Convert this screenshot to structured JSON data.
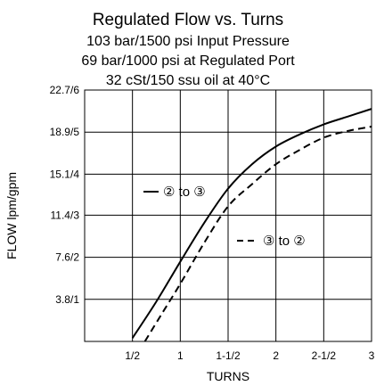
{
  "chart_data": {
    "type": "line",
    "title_lines": [
      "Regulated Flow vs. Turns",
      "103 bar/1500 psi Input Pressure",
      "69 bar/1000 psi at Regulated Port",
      "32 cSt/150 ssu oil at 40°C"
    ],
    "xlabel": "TURNS",
    "ylabel": "FLOW lpm/gpm",
    "xlim": [
      0,
      3
    ],
    "ylim": [
      0,
      22.7
    ],
    "x_ticks": [
      {
        "value": 0.5,
        "label": "1/2"
      },
      {
        "value": 1,
        "label": "1"
      },
      {
        "value": 1.5,
        "label": "1-1/2"
      },
      {
        "value": 2,
        "label": "2"
      },
      {
        "value": 2.5,
        "label": "2-1/2"
      },
      {
        "value": 3,
        "label": "3"
      }
    ],
    "y_ticks": [
      {
        "value": 3.8,
        "label": "3.8/1"
      },
      {
        "value": 7.6,
        "label": "7.6/2"
      },
      {
        "value": 11.4,
        "label": "11.4/3"
      },
      {
        "value": 15.1,
        "label": "15.1/4"
      },
      {
        "value": 18.9,
        "label": "18.9/5"
      },
      {
        "value": 22.7,
        "label": "22.7/6"
      }
    ],
    "grid": true,
    "series": [
      {
        "name": "② to ③",
        "style": "solid",
        "x": [
          0.5,
          0.75,
          1.0,
          1.25,
          1.5,
          1.75,
          2.0,
          2.25,
          2.5,
          2.75,
          3.0
        ],
        "y": [
          0.3,
          3.6,
          7.2,
          10.7,
          13.8,
          16.0,
          17.6,
          18.7,
          19.6,
          20.3,
          21.0
        ]
      },
      {
        "name": "③ to ②",
        "style": "dashed",
        "x": [
          0.63,
          0.8,
          1.0,
          1.25,
          1.5,
          1.75,
          2.0,
          2.25,
          2.5,
          2.75,
          3.0
        ],
        "y": [
          0.0,
          2.4,
          5.2,
          8.9,
          12.2,
          14.2,
          16.0,
          17.3,
          18.4,
          19.0,
          19.4
        ]
      }
    ],
    "legend": [
      {
        "text": "② to ③",
        "style": "solid",
        "placement": "left-middle"
      },
      {
        "text": "③ to ②",
        "style": "dashed",
        "placement": "right-middle"
      }
    ]
  }
}
